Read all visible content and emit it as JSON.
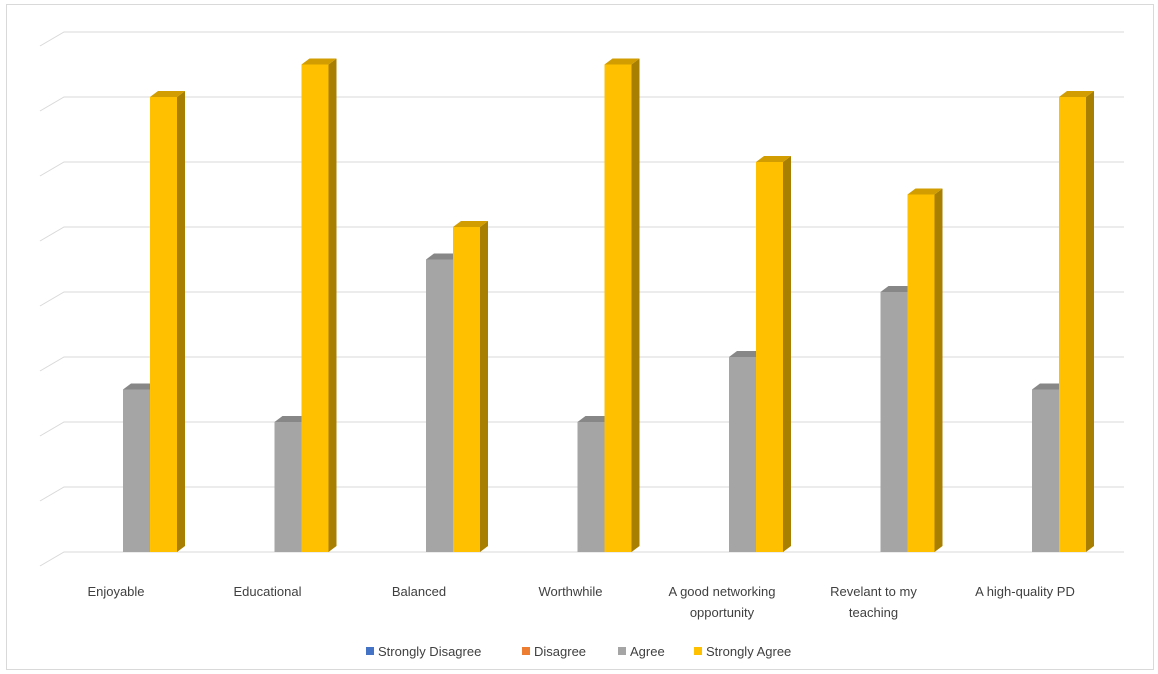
{
  "chart_data": {
    "type": "bar",
    "title": "",
    "xlabel": "",
    "ylabel": "",
    "ylim": [
      0,
      8
    ],
    "grid": true,
    "legend_position": "bottom",
    "categories": [
      [
        "Enjoyable"
      ],
      [
        "Educational"
      ],
      [
        "Balanced"
      ],
      [
        "Worthwhile"
      ],
      [
        "A good networking",
        "opportunity"
      ],
      [
        "Revelant to my",
        "teaching"
      ],
      [
        "A high-quality PD"
      ]
    ],
    "series": [
      {
        "name": "Strongly Disagree",
        "color": "#4472C4",
        "values": [
          0,
          0,
          0,
          0,
          0,
          0,
          0
        ]
      },
      {
        "name": "Disagree",
        "color": "#ED7D31",
        "values": [
          0,
          0,
          0,
          0,
          0,
          0,
          0
        ]
      },
      {
        "name": "Agree",
        "color": "#A5A5A5",
        "values": [
          2.5,
          2,
          4.5,
          2,
          3,
          4,
          2.5
        ]
      },
      {
        "name": "Strongly Agree",
        "color": "#FFC000",
        "values": [
          7,
          7.5,
          5,
          7.5,
          6,
          5.5,
          7
        ]
      }
    ]
  }
}
